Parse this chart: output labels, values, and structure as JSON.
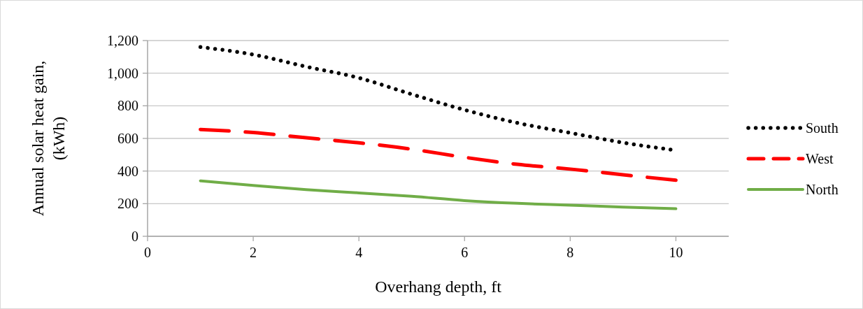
{
  "chart_data": {
    "type": "line",
    "xlabel": "Overhang depth, ft",
    "ylabel": "Annual solar heat gain, (kWh)",
    "x": [
      1,
      2,
      3,
      4,
      5,
      6,
      7,
      8,
      9,
      10
    ],
    "series": [
      {
        "name": "South",
        "color": "#000000",
        "line_style": "dotted",
        "values": [
          1160,
          1114,
          1040,
          971,
          871,
          775,
          695,
          634,
          574,
          527
        ]
      },
      {
        "name": "West",
        "color": "#ff0000",
        "line_style": "dashed",
        "values": [
          655,
          636,
          604,
          573,
          534,
          484,
          441,
          412,
          377,
          344
        ]
      },
      {
        "name": "North",
        "color": "#70ad47",
        "line_style": "solid",
        "values": [
          340,
          312,
          286,
          266,
          245,
          219,
          202,
          191,
          179,
          169
        ]
      }
    ],
    "xlim": [
      0,
      11
    ],
    "xticks": [
      0,
      2,
      4,
      6,
      8,
      10
    ],
    "ylim": [
      0,
      1200
    ],
    "yticks": [
      0,
      200,
      400,
      600,
      800,
      {
        "value": 1000,
        "label": "1,000"
      },
      {
        "value": 1200,
        "label": "1,200"
      }
    ],
    "grid": "y",
    "legend": "right",
    "marker": "none"
  }
}
